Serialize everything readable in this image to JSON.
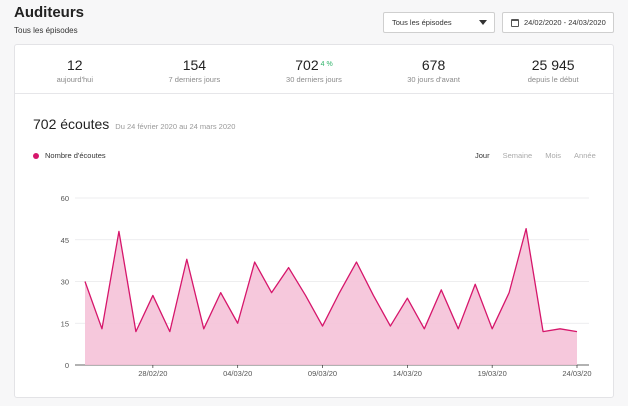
{
  "header": {
    "title": "Auditeurs",
    "subtitle": "Tous les épisodes"
  },
  "filters": {
    "episode_select": "Tous les épisodes",
    "date_range": "24/02/2020 - 24/03/2020"
  },
  "stats": [
    {
      "value": "12",
      "label": "aujourd'hui"
    },
    {
      "value": "154",
      "label": "7 derniers jours"
    },
    {
      "value": "702",
      "badge": "4 %",
      "label": "30 derniers jours"
    },
    {
      "value": "678",
      "label": "30 jours d'avant"
    },
    {
      "value": "25 945",
      "label": "depuis le début"
    }
  ],
  "listens": {
    "count": "702 écoutes",
    "range": "Du 24 février 2020 au 24 mars 2020"
  },
  "legend": {
    "label": "Nombre d'écoutes"
  },
  "periods": [
    "Jour",
    "Semaine",
    "Mois",
    "Année"
  ],
  "active_period": "Jour",
  "colors": {
    "accent": "#d6166b",
    "fill": "#f5c2d8",
    "positive": "#2fb36a"
  },
  "chart_data": {
    "type": "area",
    "x": [
      "24/02/20",
      "25/02/20",
      "26/02/20",
      "27/02/20",
      "28/02/20",
      "29/02/20",
      "01/03/20",
      "02/03/20",
      "03/03/20",
      "04/03/20",
      "05/03/20",
      "06/03/20",
      "07/03/20",
      "08/03/20",
      "09/03/20",
      "10/03/20",
      "11/03/20",
      "12/03/20",
      "13/03/20",
      "14/03/20",
      "15/03/20",
      "16/03/20",
      "17/03/20",
      "18/03/20",
      "19/03/20",
      "20/03/20",
      "21/03/20",
      "22/03/20",
      "23/03/20",
      "24/03/20"
    ],
    "series": [
      {
        "values": [
          30,
          13,
          48,
          12,
          25,
          12,
          38,
          13,
          26,
          15,
          37,
          26,
          35,
          25,
          14,
          26,
          37,
          25,
          14,
          24,
          13,
          27,
          13,
          29,
          13,
          26,
          49,
          12,
          13,
          12
        ]
      }
    ],
    "x_tick_labels": [
      "28/02/20",
      "04/03/20",
      "09/03/20",
      "14/03/20",
      "19/03/20",
      "24/03/20"
    ],
    "y_ticks": [
      0,
      15,
      30,
      45,
      60
    ],
    "ylim": [
      0,
      60
    ],
    "grid": true,
    "legend": "top-left"
  }
}
